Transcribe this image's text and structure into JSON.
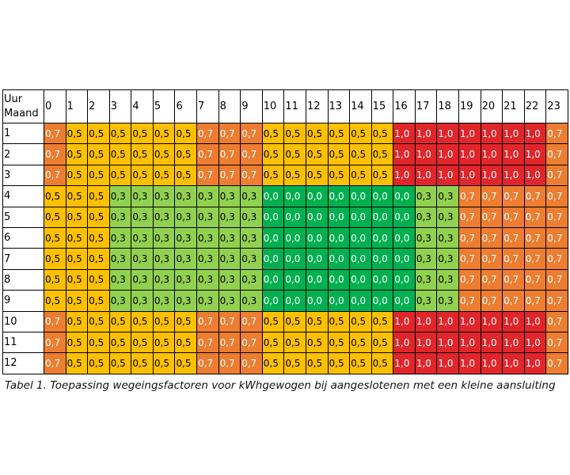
{
  "table": {
    "corner": [
      "Uur",
      "Maand"
    ],
    "hours": [
      0,
      1,
      2,
      3,
      4,
      5,
      6,
      7,
      8,
      9,
      10,
      11,
      12,
      13,
      14,
      15,
      16,
      17,
      18,
      19,
      20,
      21,
      22,
      23
    ],
    "cell_styles": {
      "0,7": {
        "fill": "#ed7d31",
        "text": "#ffffff"
      },
      "0,5": {
        "fill": "#ffc000",
        "text": "#000000"
      },
      "0,3": {
        "fill": "#92d050",
        "text": "#000000"
      },
      "0,0": {
        "fill": "#00b050",
        "text": "#ffffff"
      },
      "1,0": {
        "fill": "#e0262b",
        "text": "#ffffff"
      }
    },
    "rows": [
      {
        "month": 1,
        "values": [
          "0,7",
          "0,5",
          "0,5",
          "0,5",
          "0,5",
          "0,5",
          "0,5",
          "0,7",
          "0,7",
          "0,7",
          "0,5",
          "0,5",
          "0,5",
          "0,5",
          "0,5",
          "0,5",
          "1,0",
          "1,0",
          "1,0",
          "1,0",
          "1,0",
          "1,0",
          "1,0",
          "0,7"
        ]
      },
      {
        "month": 2,
        "values": [
          "0,7",
          "0,5",
          "0,5",
          "0,5",
          "0,5",
          "0,5",
          "0,5",
          "0,7",
          "0,7",
          "0,7",
          "0,5",
          "0,5",
          "0,5",
          "0,5",
          "0,5",
          "0,5",
          "1,0",
          "1,0",
          "1,0",
          "1,0",
          "1,0",
          "1,0",
          "1,0",
          "0,7"
        ]
      },
      {
        "month": 3,
        "values": [
          "0,7",
          "0,5",
          "0,5",
          "0,5",
          "0,5",
          "0,5",
          "0,5",
          "0,7",
          "0,7",
          "0,7",
          "0,5",
          "0,5",
          "0,5",
          "0,5",
          "0,5",
          "0,5",
          "1,0",
          "1,0",
          "1,0",
          "1,0",
          "1,0",
          "1,0",
          "1,0",
          "0,7"
        ]
      },
      {
        "month": 4,
        "values": [
          "0,5",
          "0,5",
          "0,5",
          "0,3",
          "0,3",
          "0,3",
          "0,3",
          "0,3",
          "0,3",
          "0,3",
          "0,0",
          "0,0",
          "0,0",
          "0,0",
          "0,0",
          "0,0",
          "0,0",
          "0,3",
          "0,3",
          "0,7",
          "0,7",
          "0,7",
          "0,7",
          "0,7"
        ]
      },
      {
        "month": 5,
        "values": [
          "0,5",
          "0,5",
          "0,5",
          "0,3",
          "0,3",
          "0,3",
          "0,3",
          "0,3",
          "0,3",
          "0,3",
          "0,0",
          "0,0",
          "0,0",
          "0,0",
          "0,0",
          "0,0",
          "0,0",
          "0,3",
          "0,3",
          "0,7",
          "0,7",
          "0,7",
          "0,7",
          "0,7"
        ]
      },
      {
        "month": 6,
        "values": [
          "0,5",
          "0,5",
          "0,5",
          "0,3",
          "0,3",
          "0,3",
          "0,3",
          "0,3",
          "0,3",
          "0,3",
          "0,0",
          "0,0",
          "0,0",
          "0,0",
          "0,0",
          "0,0",
          "0,0",
          "0,3",
          "0,3",
          "0,7",
          "0,7",
          "0,7",
          "0,7",
          "0,7"
        ]
      },
      {
        "month": 7,
        "values": [
          "0,5",
          "0,5",
          "0,5",
          "0,3",
          "0,3",
          "0,3",
          "0,3",
          "0,3",
          "0,3",
          "0,3",
          "0,0",
          "0,0",
          "0,0",
          "0,0",
          "0,0",
          "0,0",
          "0,0",
          "0,3",
          "0,3",
          "0,7",
          "0,7",
          "0,7",
          "0,7",
          "0,7"
        ]
      },
      {
        "month": 8,
        "values": [
          "0,5",
          "0,5",
          "0,5",
          "0,3",
          "0,3",
          "0,3",
          "0,3",
          "0,3",
          "0,3",
          "0,3",
          "0,0",
          "0,0",
          "0,0",
          "0,0",
          "0,0",
          "0,0",
          "0,0",
          "0,3",
          "0,3",
          "0,7",
          "0,7",
          "0,7",
          "0,7",
          "0,7"
        ]
      },
      {
        "month": 9,
        "values": [
          "0,5",
          "0,5",
          "0,5",
          "0,3",
          "0,3",
          "0,3",
          "0,3",
          "0,3",
          "0,3",
          "0,3",
          "0,0",
          "0,0",
          "0,0",
          "0,0",
          "0,0",
          "0,0",
          "0,0",
          "0,3",
          "0,3",
          "0,7",
          "0,7",
          "0,7",
          "0,7",
          "0,7"
        ]
      },
      {
        "month": 10,
        "values": [
          "0,7",
          "0,5",
          "0,5",
          "0,5",
          "0,5",
          "0,5",
          "0,5",
          "0,7",
          "0,7",
          "0,7",
          "0,5",
          "0,5",
          "0,5",
          "0,5",
          "0,5",
          "0,5",
          "1,0",
          "1,0",
          "1,0",
          "1,0",
          "1,0",
          "1,0",
          "1,0",
          "0,7"
        ]
      },
      {
        "month": 11,
        "values": [
          "0,7",
          "0,5",
          "0,5",
          "0,5",
          "0,5",
          "0,5",
          "0,5",
          "0,7",
          "0,7",
          "0,7",
          "0,5",
          "0,5",
          "0,5",
          "0,5",
          "0,5",
          "0,5",
          "1,0",
          "1,0",
          "1,0",
          "1,0",
          "1,0",
          "1,0",
          "1,0",
          "0,7"
        ]
      },
      {
        "month": 12,
        "values": [
          "0,7",
          "0,5",
          "0,5",
          "0,5",
          "0,5",
          "0,5",
          "0,5",
          "0,7",
          "0,7",
          "0,7",
          "0,5",
          "0,5",
          "0,5",
          "0,5",
          "0,5",
          "0,5",
          "1,0",
          "1,0",
          "1,0",
          "1,0",
          "1,0",
          "1,0",
          "1,0",
          "0,7"
        ]
      }
    ],
    "caption": "Tabel 1. Toepassing wegeingsfactoren voor kWhgewogen bij aangeslotenen met een kleine aansluiting"
  }
}
